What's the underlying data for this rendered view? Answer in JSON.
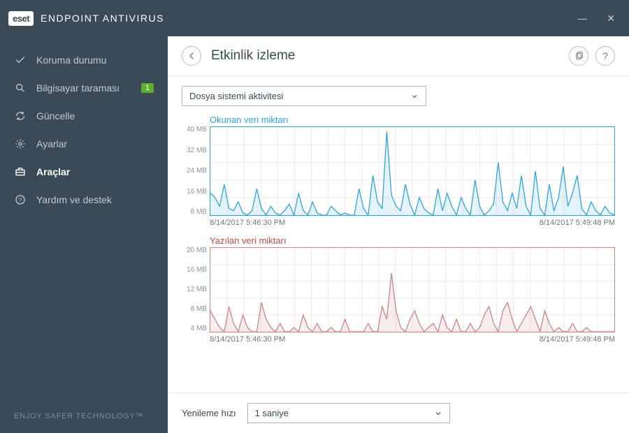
{
  "app": {
    "brand": "eset",
    "title": "ENDPOINT ANTIVIRUS",
    "footer": "ENJOY SAFER TECHNOLOGY™"
  },
  "sidebar": {
    "items": [
      {
        "label": "Koruma durumu",
        "icon": "check-icon"
      },
      {
        "label": "Bilgisayar taraması",
        "icon": "search-icon",
        "badge": "1"
      },
      {
        "label": "Güncelle",
        "icon": "refresh-icon"
      },
      {
        "label": "Ayarlar",
        "icon": "gear-icon"
      },
      {
        "label": "Araçlar",
        "icon": "toolbox-icon",
        "active": true
      },
      {
        "label": "Yardım ve destek",
        "icon": "help-icon"
      }
    ]
  },
  "header": {
    "title": "Etkinlik izleme"
  },
  "activity_select": {
    "value": "Dosya sistemi aktivitesi"
  },
  "chart_read": {
    "type": "line",
    "title": "Okunan veri miktarı",
    "title_color": "#2ba3e0",
    "line_color": "#2ba3e0",
    "fill_color": "rgba(43,163,224,0.12)",
    "border_color": "#2ba3e0",
    "grid_color": "#f3edec",
    "background_color": "#ffffff",
    "ylim": [
      0,
      40
    ],
    "yticks": [
      "40 MB",
      "32 MB",
      "24 MB",
      "16 MB",
      "8 MB"
    ],
    "xaxis": [
      "8/14/2017 5:46:30 PM",
      "8/14/2017 5:49:48 PM"
    ],
    "height": 128,
    "values": [
      10,
      8,
      4,
      14,
      3,
      2,
      6,
      1,
      0,
      2,
      12,
      3,
      0,
      4,
      1,
      0,
      2,
      5,
      0,
      10,
      2,
      0,
      6,
      1,
      0,
      0,
      4,
      2,
      0,
      1,
      0,
      0,
      12,
      3,
      0,
      18,
      6,
      3,
      38,
      9,
      4,
      2,
      14,
      5,
      0,
      8,
      3,
      1,
      0,
      12,
      2,
      10,
      4,
      0,
      8,
      3,
      0,
      16,
      4,
      0,
      2,
      5,
      24,
      6,
      2,
      10,
      3,
      18,
      4,
      0,
      20,
      3,
      0,
      14,
      2,
      8,
      22,
      4,
      10,
      18,
      3,
      0,
      6,
      2,
      0,
      4,
      1,
      0
    ]
  },
  "chart_write": {
    "type": "line",
    "title": "Yazılan veri miktarı",
    "title_color": "#c54a4a",
    "line_color": "#c98383",
    "fill_color": "rgba(201,131,131,0.15)",
    "border_color": "#c98383",
    "grid_color": "#f3edec",
    "background_color": "#ffffff",
    "ylim": [
      0,
      20
    ],
    "yticks": [
      "20 MB",
      "16 MB",
      "12 MB",
      "8 MB",
      "4 MB"
    ],
    "xaxis": [
      "8/14/2017 5:46:30 PM",
      "8/14/2017 5:49:48 PM"
    ],
    "height": 122,
    "values": [
      5,
      3,
      1,
      0,
      6,
      2,
      0,
      4,
      1,
      0,
      0,
      7,
      3,
      1,
      0,
      2,
      0,
      0,
      1,
      0,
      4,
      1,
      0,
      2,
      0,
      0,
      1,
      0,
      0,
      3,
      0,
      0,
      0,
      0,
      2,
      0,
      0,
      6,
      3,
      14,
      5,
      1,
      0,
      3,
      5,
      2,
      0,
      1,
      2,
      0,
      4,
      1,
      0,
      3,
      0,
      0,
      2,
      0,
      1,
      4,
      6,
      2,
      0,
      5,
      7,
      3,
      0,
      2,
      4,
      6,
      3,
      0,
      5,
      2,
      0,
      1,
      0,
      0,
      2,
      0,
      0,
      1,
      0,
      0,
      0,
      0,
      0,
      0
    ]
  },
  "refresh": {
    "label": "Yenileme hızı",
    "value": "1 saniye"
  }
}
